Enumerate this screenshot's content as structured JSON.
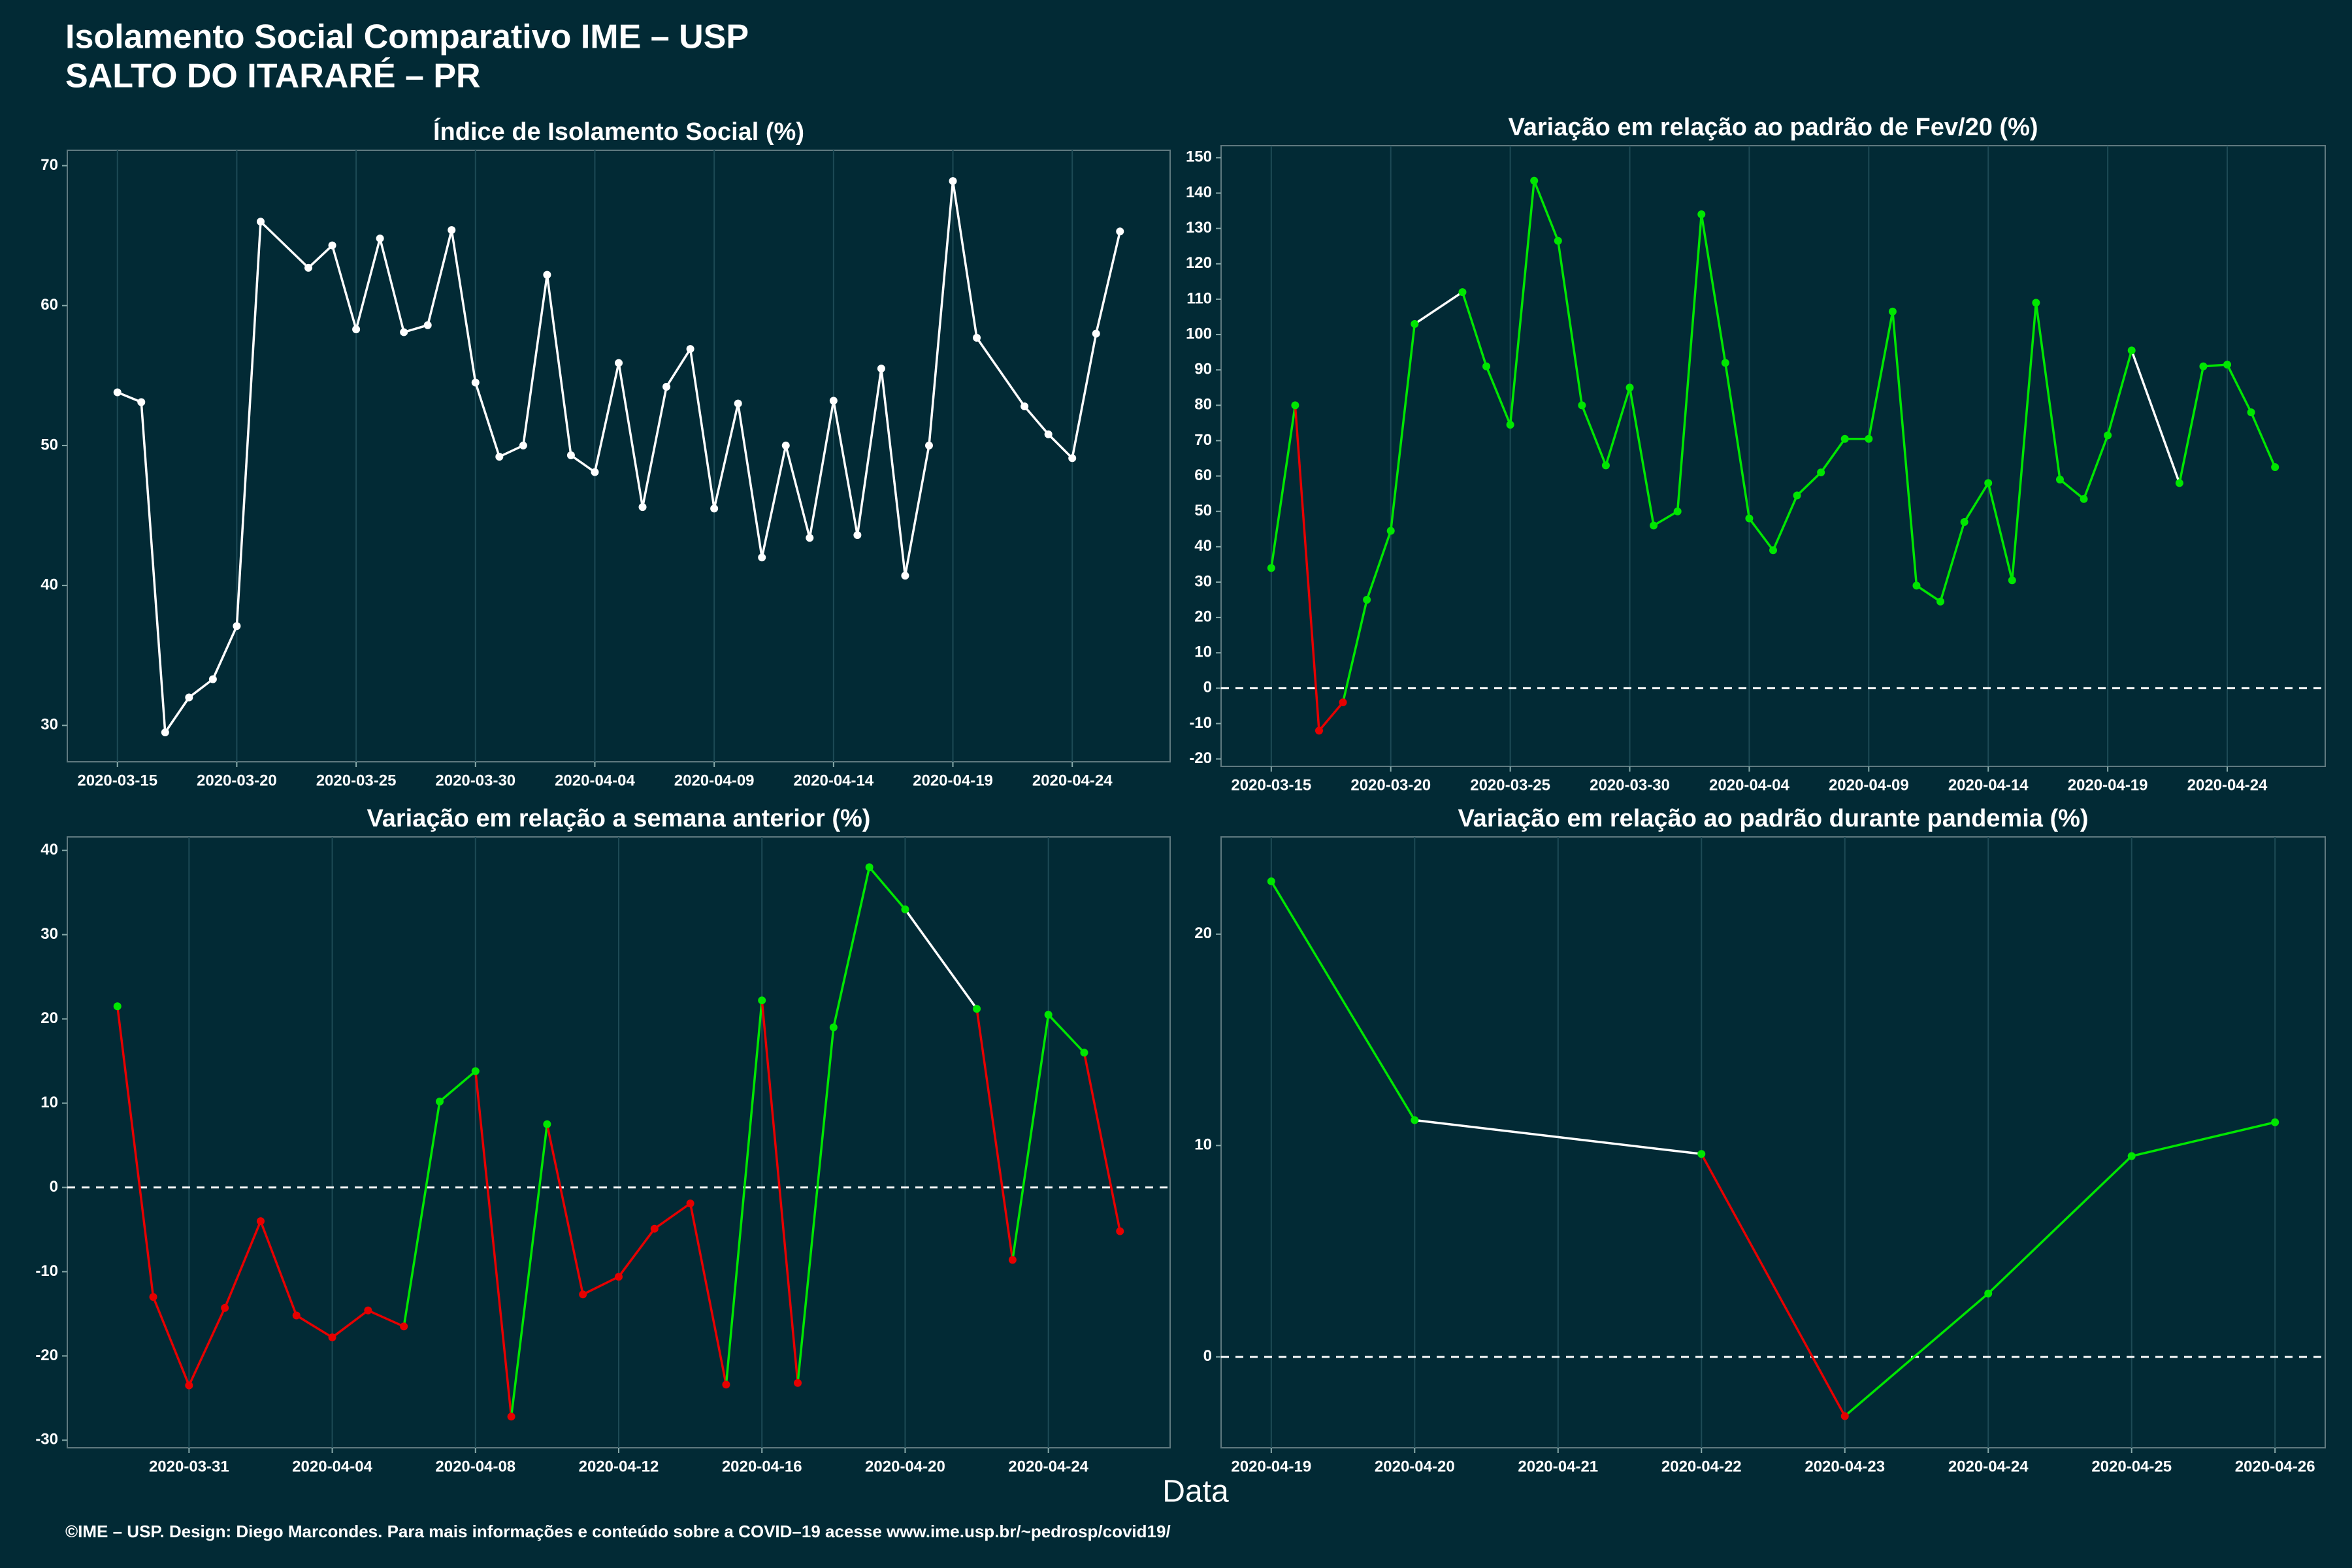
{
  "header": {
    "title": "Isolamento Social Comparativo IME – USP",
    "subtitle": "SALTO DO ITARARÉ – PR"
  },
  "x_label": "Data",
  "caption": "©IME – USP. Design: Diego Marcondes. Para mais informações e conteúdo sobre a COVID–19 acesse www.ime.usp.br/~pedrosp/covid19/",
  "chart_data": [
    {
      "type": "line",
      "title": "Índice de Isolamento Social (%)",
      "color": "#ffffff",
      "x": [
        "2020-03-15",
        "2020-03-16",
        "2020-03-17",
        "2020-03-18",
        "2020-03-19",
        "2020-03-20",
        "2020-03-21",
        "2020-03-23",
        "2020-03-24",
        "2020-03-25",
        "2020-03-26",
        "2020-03-27",
        "2020-03-28",
        "2020-03-29",
        "2020-03-30",
        "2020-03-31",
        "2020-04-01",
        "2020-04-02",
        "2020-04-03",
        "2020-04-04",
        "2020-04-05",
        "2020-04-06",
        "2020-04-07",
        "2020-04-08",
        "2020-04-09",
        "2020-04-10",
        "2020-04-11",
        "2020-04-12",
        "2020-04-13",
        "2020-04-14",
        "2020-04-15",
        "2020-04-16",
        "2020-04-17",
        "2020-04-18",
        "2020-04-19",
        "2020-04-20",
        "2020-04-22",
        "2020-04-23",
        "2020-04-24",
        "2020-04-25",
        "2020-04-26"
      ],
      "values": [
        53.8,
        53.1,
        29.5,
        32,
        33.3,
        37.1,
        66,
        62.7,
        64.3,
        58.3,
        64.8,
        58.1,
        58.6,
        65.4,
        54.5,
        49.2,
        50,
        62.2,
        49.3,
        48.1,
        55.9,
        45.6,
        54.2,
        56.9,
        45.5,
        53,
        42,
        50,
        43.4,
        53.2,
        43.6,
        55.5,
        40.7,
        50,
        68.9,
        57.7,
        52.8,
        50.8,
        49.1,
        58,
        65.3
      ],
      "xticks": [
        "2020-03-15",
        "2020-03-20",
        "2020-03-25",
        "2020-03-30",
        "2020-04-04",
        "2020-04-09",
        "2020-04-14",
        "2020-04-19",
        "2020-04-24"
      ],
      "ylim": [
        27.4,
        71.1
      ],
      "yticks": [
        30,
        40,
        50,
        60,
        70
      ]
    },
    {
      "type": "line",
      "title": "Variação em relação ao padrão de Fev/20 (%)",
      "colors": {
        "positive": "#00e600",
        "negative": "#e60000",
        "gap": "#ffffff"
      },
      "reference_line": 0,
      "x": [
        "2020-03-15",
        "2020-03-16",
        "2020-03-17",
        "2020-03-18",
        "2020-03-19",
        "2020-03-20",
        "2020-03-21",
        "2020-03-23",
        "2020-03-24",
        "2020-03-25",
        "2020-03-26",
        "2020-03-27",
        "2020-03-28",
        "2020-03-29",
        "2020-03-30",
        "2020-03-31",
        "2020-04-01",
        "2020-04-02",
        "2020-04-03",
        "2020-04-04",
        "2020-04-05",
        "2020-04-06",
        "2020-04-07",
        "2020-04-08",
        "2020-04-09",
        "2020-04-10",
        "2020-04-11",
        "2020-04-12",
        "2020-04-13",
        "2020-04-14",
        "2020-04-15",
        "2020-04-16",
        "2020-04-17",
        "2020-04-18",
        "2020-04-19",
        "2020-04-20",
        "2020-04-22",
        "2020-04-23",
        "2020-04-24",
        "2020-04-25",
        "2020-04-26"
      ],
      "values": [
        34,
        80,
        -12,
        -4,
        25,
        44.5,
        103,
        112,
        91,
        74.5,
        143.5,
        126.5,
        80,
        63,
        85,
        46,
        50,
        134,
        92,
        48,
        39,
        54.5,
        61,
        70.5,
        70.5,
        106.5,
        29,
        24.5,
        47,
        58,
        30.5,
        109,
        59,
        53.5,
        71.5,
        95.5,
        58,
        91,
        91.5,
        78,
        62.5
      ],
      "xticks": [
        "2020-03-15",
        "2020-03-20",
        "2020-03-25",
        "2020-03-30",
        "2020-04-04",
        "2020-04-09",
        "2020-04-14",
        "2020-04-19",
        "2020-04-24"
      ],
      "ylim": [
        -22.1,
        153.4
      ],
      "yticks": [
        -20,
        -10,
        0,
        10,
        20,
        30,
        40,
        50,
        60,
        70,
        80,
        90,
        100,
        110,
        120,
        130,
        140,
        150
      ]
    },
    {
      "type": "line",
      "title": "Variação em relação a semana anterior (%)",
      "colors": {
        "positive": "#00e600",
        "negative": "#e60000",
        "gap": "#ffffff"
      },
      "reference_line": 0,
      "x": [
        "2020-03-29",
        "2020-03-30",
        "2020-03-31",
        "2020-04-01",
        "2020-04-02",
        "2020-04-03",
        "2020-04-04",
        "2020-04-05",
        "2020-04-06",
        "2020-04-07",
        "2020-04-08",
        "2020-04-09",
        "2020-04-10",
        "2020-04-11",
        "2020-04-12",
        "2020-04-13",
        "2020-04-14",
        "2020-04-15",
        "2020-04-16",
        "2020-04-17",
        "2020-04-18",
        "2020-04-19",
        "2020-04-20",
        "2020-04-22",
        "2020-04-23",
        "2020-04-24",
        "2020-04-25",
        "2020-04-26"
      ],
      "values": [
        21.5,
        -13,
        -23.5,
        -14.3,
        -4,
        -15.2,
        -17.8,
        -14.6,
        -16.5,
        10.2,
        13.8,
        -27.2,
        7.5,
        -12.7,
        -10.6,
        -4.9,
        -1.9,
        -23.4,
        22.2,
        -23.2,
        19,
        38,
        33,
        21.2,
        -8.6,
        20.5,
        16,
        -5.2
      ],
      "xticks": [
        "2020-03-31",
        "2020-04-04",
        "2020-04-08",
        "2020-04-12",
        "2020-04-16",
        "2020-04-20",
        "2020-04-24"
      ],
      "ylim": [
        -30.9,
        41.6
      ],
      "yticks": [
        -30,
        -20,
        -10,
        0,
        10,
        20,
        30,
        40
      ]
    },
    {
      "type": "line",
      "title": "Variação em relação ao padrão durante pandemia (%)",
      "colors": {
        "positive": "#00e600",
        "negative": "#e60000",
        "gap": "#ffffff"
      },
      "reference_line": 0,
      "x": [
        "2020-04-19",
        "2020-04-20",
        "2020-04-22",
        "2020-04-23",
        "2020-04-24",
        "2020-04-25",
        "2020-04-26"
      ],
      "values": [
        22.5,
        11.2,
        9.6,
        -2.8,
        3,
        9.5,
        11.1
      ],
      "xticks": [
        "2020-04-19",
        "2020-04-20",
        "2020-04-21",
        "2020-04-22",
        "2020-04-23",
        "2020-04-24",
        "2020-04-25",
        "2020-04-26"
      ],
      "ylim": [
        -4.3,
        24.6
      ],
      "yticks": [
        0,
        10,
        20
      ]
    }
  ]
}
